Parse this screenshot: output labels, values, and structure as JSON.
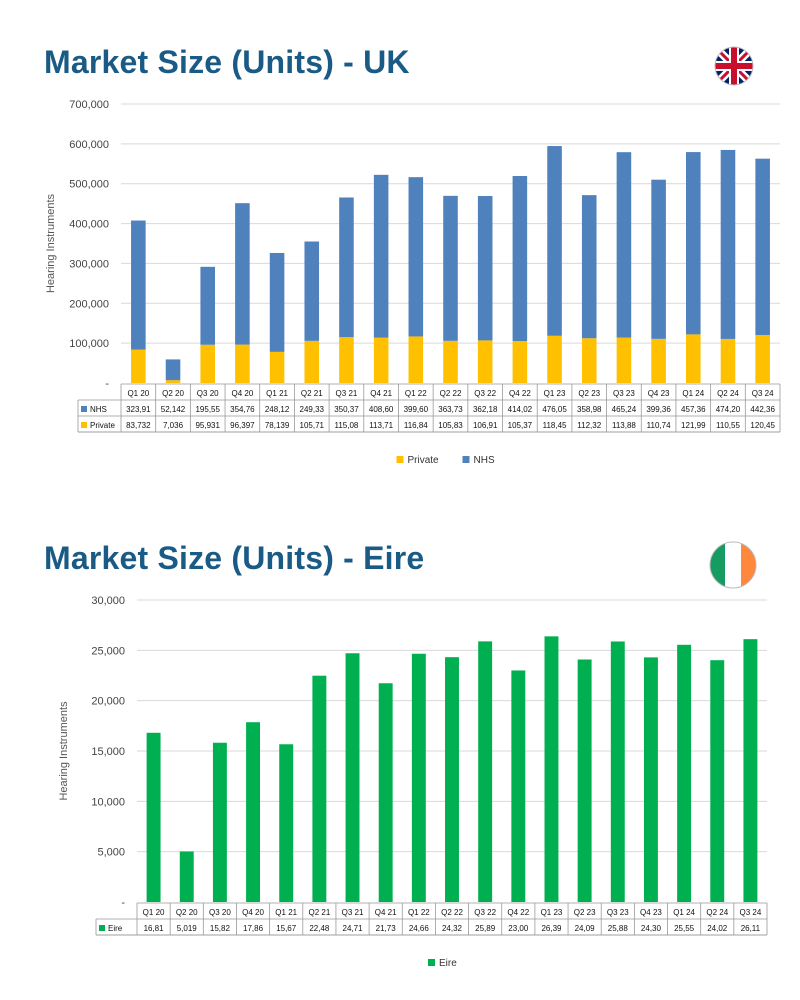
{
  "colors": {
    "title": "#1a5b86",
    "nhs": "#4f81bd",
    "private": "#ffc000",
    "eire": "#00b050",
    "grid": "#d9d9d9"
  },
  "uk": {
    "title": "Market Size (Units) - UK",
    "flag_icon": "uk-flag-icon"
  },
  "eire": {
    "title": "Market Size (Units) - Eire",
    "flag_icon": "ireland-flag-icon"
  },
  "chart_data": [
    {
      "type": "bar",
      "stacked": true,
      "title": "Market Size (Units) - UK",
      "ylabel": "Hearing Instruments",
      "ylim": [
        0,
        700000
      ],
      "yticks": [
        "-",
        "100,000",
        "200,000",
        "300,000",
        "400,000",
        "500,000",
        "600,000",
        "700,000"
      ],
      "grid": true,
      "legend": "bottom",
      "categories": [
        "Q1 20",
        "Q2 20",
        "Q3 20",
        "Q4 20",
        "Q1 21",
        "Q2 21",
        "Q3 21",
        "Q4 21",
        "Q1 22",
        "Q2 22",
        "Q3 22",
        "Q4 22",
        "Q1 23",
        "Q2 23",
        "Q3 23",
        "Q4 23",
        "Q1 24",
        "Q2 24",
        "Q3 24"
      ],
      "series": [
        {
          "name": "Private",
          "color": "#ffc000",
          "values": [
            83732,
            7036,
            95931,
            96397,
            78139,
            105710,
            115080,
            113710,
            116840,
            105830,
            106910,
            105370,
            118450,
            112320,
            113880,
            110740,
            121990,
            110550,
            120450
          ],
          "labels": [
            "83,732",
            "7,036",
            "95,931",
            "96,397",
            "78,139",
            "105,71",
            "115,08",
            "113,71",
            "116,84",
            "105,83",
            "106,91",
            "105,37",
            "118,45",
            "112,32",
            "113,88",
            "110,74",
            "121,99",
            "110,55",
            "120,45"
          ]
        },
        {
          "name": "NHS",
          "color": "#4f81bd",
          "values": [
            323910,
            52142,
            195550,
            354760,
            248120,
            249330,
            350370,
            408600,
            399600,
            363730,
            362180,
            414020,
            476050,
            358980,
            465240,
            399360,
            457360,
            474200,
            442360
          ],
          "labels": [
            "323,91",
            "52,142",
            "195,55",
            "354,76",
            "248,12",
            "249,33",
            "350,37",
            "408,60",
            "399,60",
            "363,73",
            "362,18",
            "414,02",
            "476,05",
            "358,98",
            "465,24",
            "399,36",
            "457,36",
            "474,20",
            "442,36"
          ]
        }
      ],
      "table_order": [
        "NHS",
        "Private"
      ],
      "legend_order": [
        "Private",
        "NHS"
      ]
    },
    {
      "type": "bar",
      "title": "Market Size (Units) - Eire",
      "ylabel": "Hearing Instruments",
      "ylim": [
        0,
        30000
      ],
      "yticks": [
        "-",
        "5,000",
        "10,000",
        "15,000",
        "20,000",
        "25,000",
        "30,000"
      ],
      "grid": true,
      "legend": "bottom",
      "categories": [
        "Q1 20",
        "Q2 20",
        "Q3 20",
        "Q4 20",
        "Q1 21",
        "Q2 21",
        "Q3 21",
        "Q4 21",
        "Q1 22",
        "Q2 22",
        "Q3 22",
        "Q4 22",
        "Q1 23",
        "Q2 23",
        "Q3 23",
        "Q4 23",
        "Q1 24",
        "Q2 24",
        "Q3 24"
      ],
      "series": [
        {
          "name": "Eire",
          "color": "#00b050",
          "values": [
            16810,
            5019,
            15820,
            17860,
            15670,
            22480,
            24710,
            21730,
            24660,
            24320,
            25890,
            23000,
            26390,
            24090,
            25880,
            24300,
            25550,
            24020,
            26110
          ],
          "labels": [
            "16,81",
            "5,019",
            "15,82",
            "17,86",
            "15,67",
            "22,48",
            "24,71",
            "21,73",
            "24,66",
            "24,32",
            "25,89",
            "23,00",
            "26,39",
            "24,09",
            "25,88",
            "24,30",
            "25,55",
            "24,02",
            "26,11"
          ]
        }
      ],
      "table_order": [
        "Eire"
      ],
      "legend_order": [
        "Eire"
      ]
    }
  ]
}
